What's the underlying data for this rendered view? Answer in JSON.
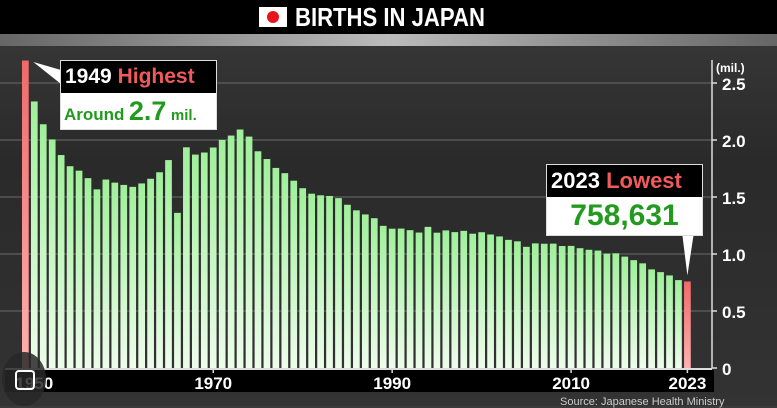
{
  "header": {
    "title": "BIRTHS IN JAPAN",
    "flag_icon": "japan-flag-icon"
  },
  "chart_data": {
    "type": "bar",
    "title": "BIRTHS IN JAPAN",
    "ylabel": "(mil.)",
    "ylim": [
      0,
      2.5
    ],
    "yticks": [
      "0",
      "0.5",
      "1.0",
      "1.5",
      "2.0",
      "2.5"
    ],
    "xtick_labels": [
      "1950",
      "1970",
      "1990",
      "2010",
      "2023"
    ],
    "grid": true,
    "x_start": 1949,
    "values": [
      2.697,
      2.338,
      2.138,
      2.005,
      1.868,
      1.77,
      1.731,
      1.665,
      1.567,
      1.653,
      1.626,
      1.606,
      1.589,
      1.619,
      1.66,
      1.717,
      1.824,
      1.361,
      1.936,
      1.872,
      1.89,
      1.934,
      2.001,
      2.039,
      2.092,
      2.03,
      1.901,
      1.833,
      1.755,
      1.709,
      1.643,
      1.577,
      1.529,
      1.515,
      1.509,
      1.49,
      1.432,
      1.383,
      1.347,
      1.314,
      1.247,
      1.222,
      1.223,
      1.209,
      1.188,
      1.238,
      1.187,
      1.207,
      1.192,
      1.203,
      1.178,
      1.191,
      1.171,
      1.154,
      1.124,
      1.111,
      1.063,
      1.093,
      1.09,
      1.091,
      1.07,
      1.071,
      1.051,
      1.037,
      1.03,
      1.004,
      1.006,
      0.977,
      0.946,
      0.918,
      0.865,
      0.841,
      0.812,
      0.771,
      0.759
    ],
    "colors": {
      "bar": "#9ff09a",
      "highlight": "#f06a6a"
    },
    "annotations": [
      {
        "year_label": "1949",
        "tag": "Highest",
        "value_prefix": "Around",
        "value": "2.7",
        "value_unit": "mil."
      },
      {
        "year_label": "2023",
        "tag": "Lowest",
        "value": "758,631"
      }
    ],
    "source": "Source: Japanese Health Ministry"
  }
}
